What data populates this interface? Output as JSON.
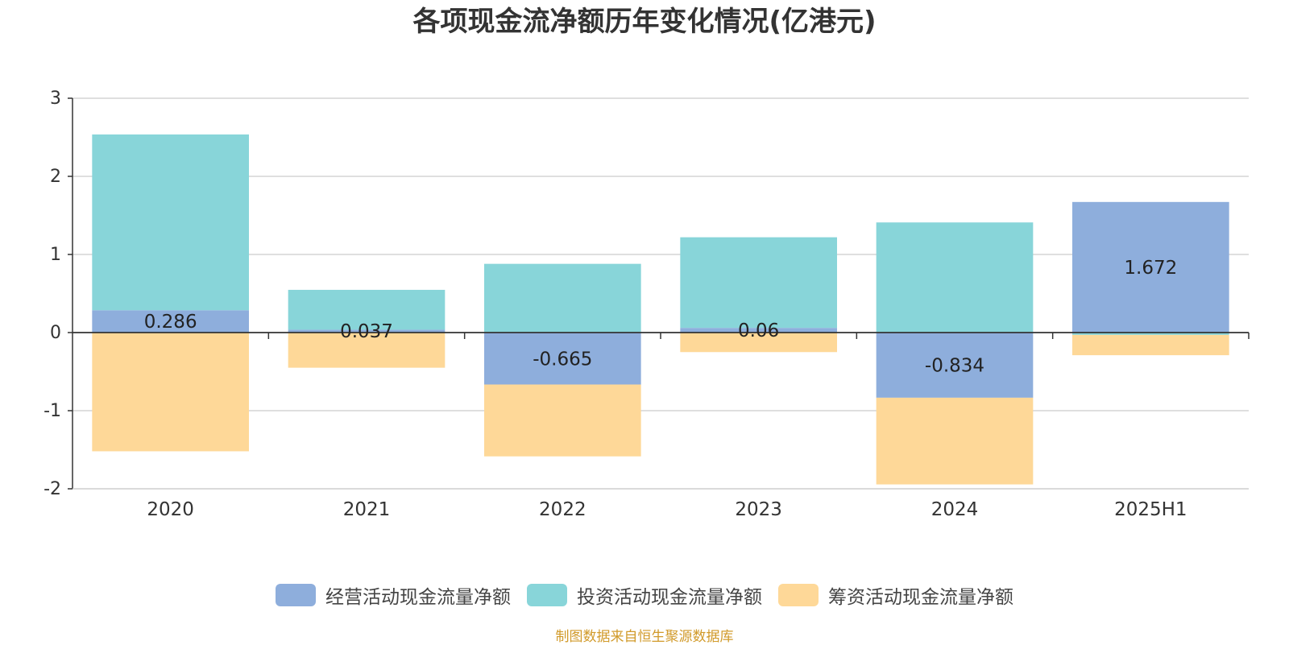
{
  "source_note": "制图数据来自恒生聚源数据库",
  "colors": {
    "operating": "#8eaedc",
    "investing": "#88d5d9",
    "financing": "#fed898",
    "axis": "#333333",
    "grid": "#cccccc",
    "source_note": "#d19a2a"
  },
  "chart_data": {
    "type": "bar",
    "stacked": true,
    "title": "各项现金流净额历年变化情况(亿港元)",
    "xlabel": "",
    "ylabel": "",
    "categories": [
      "2020",
      "2021",
      "2022",
      "2023",
      "2024",
      "2025H1"
    ],
    "ylim": [
      -2,
      3
    ],
    "yticks": [
      -2,
      -1,
      0,
      1,
      2,
      3
    ],
    "grid": true,
    "legend_position": "bottom",
    "series": [
      {
        "name": "经营活动现金流量净额",
        "color_key": "operating",
        "values": [
          0.286,
          0.037,
          -0.665,
          0.06,
          -0.834,
          1.672
        ],
        "labels": [
          "0.286",
          "0.037",
          "-0.665",
          "0.06",
          "-0.834",
          "1.672"
        ]
      },
      {
        "name": "投资活动现金流量净额",
        "color_key": "investing",
        "values": [
          2.25,
          0.51,
          0.88,
          1.16,
          1.41,
          -0.03
        ]
      },
      {
        "name": "筹资活动现金流量净额",
        "color_key": "financing",
        "values": [
          -1.52,
          -0.45,
          -0.92,
          -0.25,
          -1.11,
          -0.26
        ]
      }
    ]
  }
}
